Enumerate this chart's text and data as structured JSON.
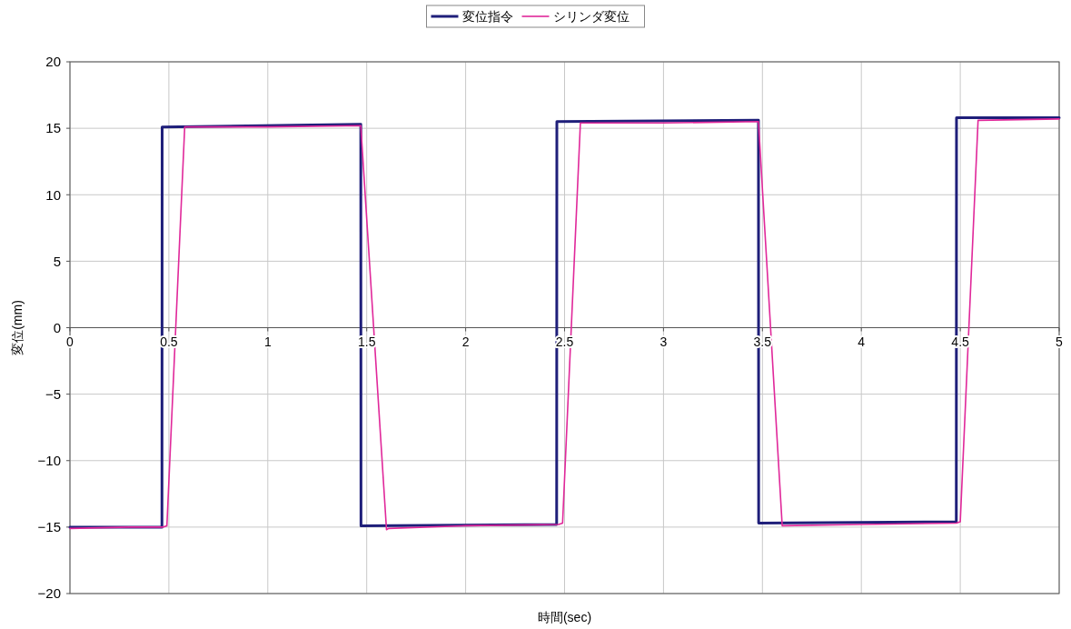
{
  "chart_data": {
    "type": "line",
    "xlabel": "時間(sec)",
    "ylabel": "変位(mm)",
    "xlim": [
      0,
      5
    ],
    "ylim": [
      -20,
      20
    ],
    "xticks": [
      0,
      0.5,
      1,
      1.5,
      2,
      2.5,
      3,
      3.5,
      4,
      4.5,
      5
    ],
    "yticks": [
      -20,
      -15,
      -10,
      -5,
      0,
      5,
      10,
      15,
      20
    ],
    "grid": true,
    "legend": "top",
    "marker": "none",
    "line_style": "solid",
    "series": [
      {
        "name": "変位指令",
        "color": "#1f1f7a",
        "x": [
          0,
          0.465,
          0.466,
          1.47,
          1.471,
          2.46,
          2.461,
          3.48,
          3.481,
          4.48,
          4.481,
          5
        ],
        "values": [
          -15,
          -15,
          15.1,
          15.3,
          -14.9,
          -14.8,
          15.5,
          15.6,
          -14.7,
          -14.6,
          15.8,
          15.8
        ]
      },
      {
        "name": "シリンダ変位",
        "color": "#e0289a",
        "x": [
          0,
          0.3,
          0.47,
          0.49,
          0.58,
          1.0,
          1.47,
          1.6,
          1.61,
          2.0,
          2.47,
          2.49,
          2.58,
          3.0,
          3.48,
          3.6,
          4.0,
          4.48,
          4.5,
          4.59,
          5
        ],
        "values": [
          -15.1,
          -15.0,
          -15.0,
          -14.9,
          15.1,
          15.1,
          15.2,
          -15.2,
          -15.1,
          -14.9,
          -14.8,
          -14.7,
          15.4,
          15.4,
          15.5,
          -14.9,
          -14.8,
          -14.7,
          -14.6,
          15.6,
          15.7
        ]
      }
    ]
  }
}
